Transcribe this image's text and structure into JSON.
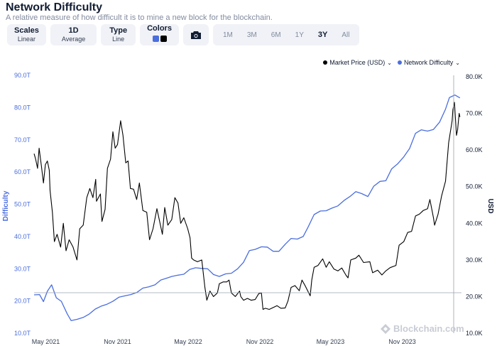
{
  "header": {
    "title": "Network Difficulty",
    "subtitle": "A relative measure of how difficult it is to mine a new block for the blockchain."
  },
  "controls": {
    "scales": {
      "label": "Scales",
      "value": "Linear"
    },
    "aggregate": {
      "label": "1D",
      "value": "Average"
    },
    "type": {
      "label": "Type",
      "value": "Line"
    },
    "colors": {
      "label": "Colors",
      "swatches": [
        "#4b6ede",
        "#000000"
      ]
    },
    "camera_icon": "camera-icon",
    "timeframes": [
      "1M",
      "3M",
      "6M",
      "1Y",
      "3Y",
      "All"
    ],
    "active_timeframe": "3Y"
  },
  "legend": {
    "price": "Market Price (USD)",
    "difficulty": "Network Difficulty"
  },
  "watermark": "Blockchain.com",
  "colors": {
    "difficulty": "#4b6ede",
    "price": "#000000",
    "accent": "#4b6ede"
  },
  "chart_data": {
    "type": "line",
    "xlabel": "",
    "x_ticks": [
      "May 2021",
      "Nov 2021",
      "May 2022",
      "Nov 2022",
      "May 2023",
      "Nov 2023"
    ],
    "y_left": {
      "label": "Difficulty",
      "ticks": [
        "10.0T",
        "20.0T",
        "30.0T",
        "40.0T",
        "50.0T",
        "60.0T",
        "70.0T",
        "80.0T",
        "90.0T"
      ],
      "range": [
        10,
        90
      ]
    },
    "y_right": {
      "label": "USD",
      "ticks": [
        "10.0K",
        "20.0K",
        "30.0K",
        "40.0K",
        "50.0K",
        "60.0K",
        "70.0K",
        "80.0K"
      ],
      "range": [
        10,
        80
      ]
    },
    "series": [
      {
        "name": "Network Difficulty",
        "axis": "left",
        "color": "#4b6ede",
        "points": [
          [
            "2021-04-01",
            21.9
          ],
          [
            "2021-04-15",
            22.0
          ],
          [
            "2021-04-25",
            19.8
          ],
          [
            "2021-05-05",
            23.0
          ],
          [
            "2021-05-16",
            25.0
          ],
          [
            "2021-05-28",
            21.0
          ],
          [
            "2021-06-10",
            19.9
          ],
          [
            "2021-06-25",
            16.0
          ],
          [
            "2021-07-05",
            13.9
          ],
          [
            "2021-07-20",
            14.3
          ],
          [
            "2021-08-05",
            14.9
          ],
          [
            "2021-08-20",
            15.9
          ],
          [
            "2021-09-05",
            17.5
          ],
          [
            "2021-09-20",
            18.4
          ],
          [
            "2021-10-05",
            19.0
          ],
          [
            "2021-10-20",
            19.9
          ],
          [
            "2021-11-05",
            21.2
          ],
          [
            "2021-11-20",
            21.6
          ],
          [
            "2021-12-05",
            22.0
          ],
          [
            "2021-12-20",
            22.6
          ],
          [
            "2022-01-05",
            24.0
          ],
          [
            "2022-01-20",
            24.4
          ],
          [
            "2022-02-05",
            25.0
          ],
          [
            "2022-02-20",
            26.5
          ],
          [
            "2022-03-05",
            27.0
          ],
          [
            "2022-03-20",
            27.6
          ],
          [
            "2022-04-05",
            28.0
          ],
          [
            "2022-04-20",
            28.3
          ],
          [
            "2022-05-05",
            29.8
          ],
          [
            "2022-05-20",
            30.3
          ],
          [
            "2022-06-05",
            30.1
          ],
          [
            "2022-06-20",
            30.0
          ],
          [
            "2022-07-05",
            28.2
          ],
          [
            "2022-07-20",
            27.6
          ],
          [
            "2022-08-05",
            28.4
          ],
          [
            "2022-08-20",
            28.6
          ],
          [
            "2022-09-05",
            30.0
          ],
          [
            "2022-09-20",
            32.0
          ],
          [
            "2022-10-05",
            35.6
          ],
          [
            "2022-10-20",
            36.0
          ],
          [
            "2022-11-05",
            36.8
          ],
          [
            "2022-11-20",
            36.7
          ],
          [
            "2022-12-05",
            35.4
          ],
          [
            "2022-12-20",
            35.4
          ],
          [
            "2023-01-05",
            37.6
          ],
          [
            "2023-01-20",
            39.4
          ],
          [
            "2023-02-05",
            39.2
          ],
          [
            "2023-02-20",
            40.0
          ],
          [
            "2023-03-05",
            43.0
          ],
          [
            "2023-03-20",
            46.8
          ],
          [
            "2023-04-05",
            47.9
          ],
          [
            "2023-04-20",
            48.0
          ],
          [
            "2023-05-05",
            48.8
          ],
          [
            "2023-05-20",
            49.5
          ],
          [
            "2023-06-05",
            51.2
          ],
          [
            "2023-06-20",
            52.4
          ],
          [
            "2023-07-05",
            53.9
          ],
          [
            "2023-07-20",
            53.3
          ],
          [
            "2023-08-05",
            52.4
          ],
          [
            "2023-08-20",
            55.6
          ],
          [
            "2023-09-05",
            57.1
          ],
          [
            "2023-09-20",
            57.3
          ],
          [
            "2023-10-05",
            61.0
          ],
          [
            "2023-10-20",
            62.5
          ],
          [
            "2023-11-05",
            64.7
          ],
          [
            "2023-11-20",
            67.3
          ],
          [
            "2023-12-05",
            72.0
          ],
          [
            "2023-12-20",
            73.1
          ],
          [
            "2024-01-05",
            72.7
          ],
          [
            "2024-01-20",
            73.2
          ],
          [
            "2024-02-05",
            75.5
          ],
          [
            "2024-02-20",
            79.5
          ],
          [
            "2024-03-01",
            83.1
          ],
          [
            "2024-03-15",
            83.9
          ],
          [
            "2024-03-28",
            83.0
          ]
        ]
      },
      {
        "name": "Market Price (USD)",
        "axis": "right",
        "color": "#000000",
        "points": [
          [
            "2021-04-01",
            59.0
          ],
          [
            "2021-04-05",
            57.5
          ],
          [
            "2021-04-10",
            55.0
          ],
          [
            "2021-04-14",
            60.5
          ],
          [
            "2021-04-20",
            55.5
          ],
          [
            "2021-04-25",
            51.0
          ],
          [
            "2021-04-30",
            56.0
          ],
          [
            "2021-05-05",
            57.0
          ],
          [
            "2021-05-10",
            54.5
          ],
          [
            "2021-05-12",
            49.0
          ],
          [
            "2021-05-18",
            43.0
          ],
          [
            "2021-05-23",
            35.0
          ],
          [
            "2021-05-30",
            37.0
          ],
          [
            "2021-06-08",
            33.5
          ],
          [
            "2021-06-15",
            40.0
          ],
          [
            "2021-06-22",
            32.5
          ],
          [
            "2021-06-30",
            35.5
          ],
          [
            "2021-07-10",
            33.5
          ],
          [
            "2021-07-20",
            30.0
          ],
          [
            "2021-07-27",
            38.5
          ],
          [
            "2021-08-05",
            39.5
          ],
          [
            "2021-08-14",
            47.0
          ],
          [
            "2021-08-22",
            49.5
          ],
          [
            "2021-08-30",
            47.0
          ],
          [
            "2021-09-06",
            52.0
          ],
          [
            "2021-09-08",
            46.0
          ],
          [
            "2021-09-18",
            48.0
          ],
          [
            "2021-09-22",
            40.5
          ],
          [
            "2021-09-30",
            43.8
          ],
          [
            "2021-10-06",
            55.0
          ],
          [
            "2021-10-14",
            57.5
          ],
          [
            "2021-10-20",
            65.0
          ],
          [
            "2021-10-26",
            60.5
          ],
          [
            "2021-11-01",
            61.5
          ],
          [
            "2021-11-09",
            68.0
          ],
          [
            "2021-11-15",
            64.0
          ],
          [
            "2021-11-22",
            56.5
          ],
          [
            "2021-11-28",
            57.0
          ],
          [
            "2021-12-04",
            49.5
          ],
          [
            "2021-12-12",
            49.3
          ],
          [
            "2021-12-20",
            46.5
          ],
          [
            "2021-12-27",
            51.0
          ],
          [
            "2022-01-05",
            43.5
          ],
          [
            "2022-01-15",
            43.0
          ],
          [
            "2022-01-22",
            35.5
          ],
          [
            "2022-01-31",
            38.5
          ],
          [
            "2022-02-10",
            44.0
          ],
          [
            "2022-02-18",
            40.0
          ],
          [
            "2022-02-24",
            37.0
          ],
          [
            "2022-03-02",
            44.3
          ],
          [
            "2022-03-10",
            39.5
          ],
          [
            "2022-03-20",
            41.0
          ],
          [
            "2022-03-28",
            47.0
          ],
          [
            "2022-04-05",
            45.5
          ],
          [
            "2022-04-12",
            40.0
          ],
          [
            "2022-04-20",
            41.5
          ],
          [
            "2022-04-30",
            38.5
          ],
          [
            "2022-05-06",
            36.0
          ],
          [
            "2022-05-10",
            30.5
          ],
          [
            "2022-05-15",
            30.0
          ],
          [
            "2022-05-25",
            29.5
          ],
          [
            "2022-06-05",
            30.0
          ],
          [
            "2022-06-13",
            22.5
          ],
          [
            "2022-06-18",
            19.0
          ],
          [
            "2022-06-26",
            21.5
          ],
          [
            "2022-07-05",
            20.0
          ],
          [
            "2022-07-15",
            21.0
          ],
          [
            "2022-07-20",
            23.5
          ],
          [
            "2022-07-30",
            24.0
          ],
          [
            "2022-08-08",
            24.0
          ],
          [
            "2022-08-14",
            24.5
          ],
          [
            "2022-08-20",
            21.0
          ],
          [
            "2022-08-30",
            20.0
          ],
          [
            "2022-09-10",
            21.5
          ],
          [
            "2022-09-13",
            20.0
          ],
          [
            "2022-09-20",
            19.0
          ],
          [
            "2022-09-30",
            19.5
          ],
          [
            "2022-10-10",
            19.0
          ],
          [
            "2022-10-20",
            19.2
          ],
          [
            "2022-10-29",
            20.8
          ],
          [
            "2022-11-05",
            21.0
          ],
          [
            "2022-11-09",
            16.5
          ],
          [
            "2022-11-15",
            16.8
          ],
          [
            "2022-11-25",
            16.5
          ],
          [
            "2022-12-05",
            17.0
          ],
          [
            "2022-12-15",
            17.5
          ],
          [
            "2022-12-25",
            16.8
          ],
          [
            "2023-01-05",
            16.9
          ],
          [
            "2023-01-12",
            18.8
          ],
          [
            "2023-01-20",
            22.5
          ],
          [
            "2023-01-30",
            23.0
          ],
          [
            "2023-02-10",
            21.6
          ],
          [
            "2023-02-17",
            24.5
          ],
          [
            "2023-02-25",
            23.0
          ],
          [
            "2023-03-10",
            20.2
          ],
          [
            "2023-03-14",
            24.5
          ],
          [
            "2023-03-20",
            28.0
          ],
          [
            "2023-03-30",
            28.5
          ],
          [
            "2023-04-11",
            30.3
          ],
          [
            "2023-04-20",
            28.0
          ],
          [
            "2023-04-28",
            29.5
          ],
          [
            "2023-05-10",
            27.5
          ],
          [
            "2023-05-20",
            27.0
          ],
          [
            "2023-05-30",
            27.8
          ],
          [
            "2023-06-10",
            25.8
          ],
          [
            "2023-06-15",
            25.1
          ],
          [
            "2023-06-22",
            30.0
          ],
          [
            "2023-07-05",
            30.5
          ],
          [
            "2023-07-13",
            31.3
          ],
          [
            "2023-07-25",
            29.3
          ],
          [
            "2023-08-10",
            29.5
          ],
          [
            "2023-08-17",
            26.5
          ],
          [
            "2023-08-30",
            27.2
          ],
          [
            "2023-09-10",
            25.9
          ],
          [
            "2023-09-20",
            27.0
          ],
          [
            "2023-10-01",
            27.9
          ],
          [
            "2023-10-16",
            28.5
          ],
          [
            "2023-10-24",
            34.0
          ],
          [
            "2023-11-05",
            35.0
          ],
          [
            "2023-11-15",
            37.5
          ],
          [
            "2023-11-25",
            37.8
          ],
          [
            "2023-12-05",
            42.0
          ],
          [
            "2023-12-15",
            42.5
          ],
          [
            "2023-12-25",
            43.5
          ],
          [
            "2024-01-05",
            44.0
          ],
          [
            "2024-01-11",
            46.5
          ],
          [
            "2024-01-20",
            41.5
          ],
          [
            "2024-01-23",
            39.5
          ],
          [
            "2024-02-01",
            42.5
          ],
          [
            "2024-02-10",
            47.5
          ],
          [
            "2024-02-20",
            51.5
          ],
          [
            "2024-02-28",
            62.0
          ],
          [
            "2024-03-05",
            66.0
          ],
          [
            "2024-03-08",
            68.0
          ],
          [
            "2024-03-10",
            71.0
          ],
          [
            "2024-03-14",
            73.0
          ],
          [
            "2024-03-19",
            64.0
          ],
          [
            "2024-03-22",
            65.5
          ],
          [
            "2024-03-26",
            70.0
          ],
          [
            "2024-03-28",
            69.0
          ]
        ]
      }
    ]
  }
}
